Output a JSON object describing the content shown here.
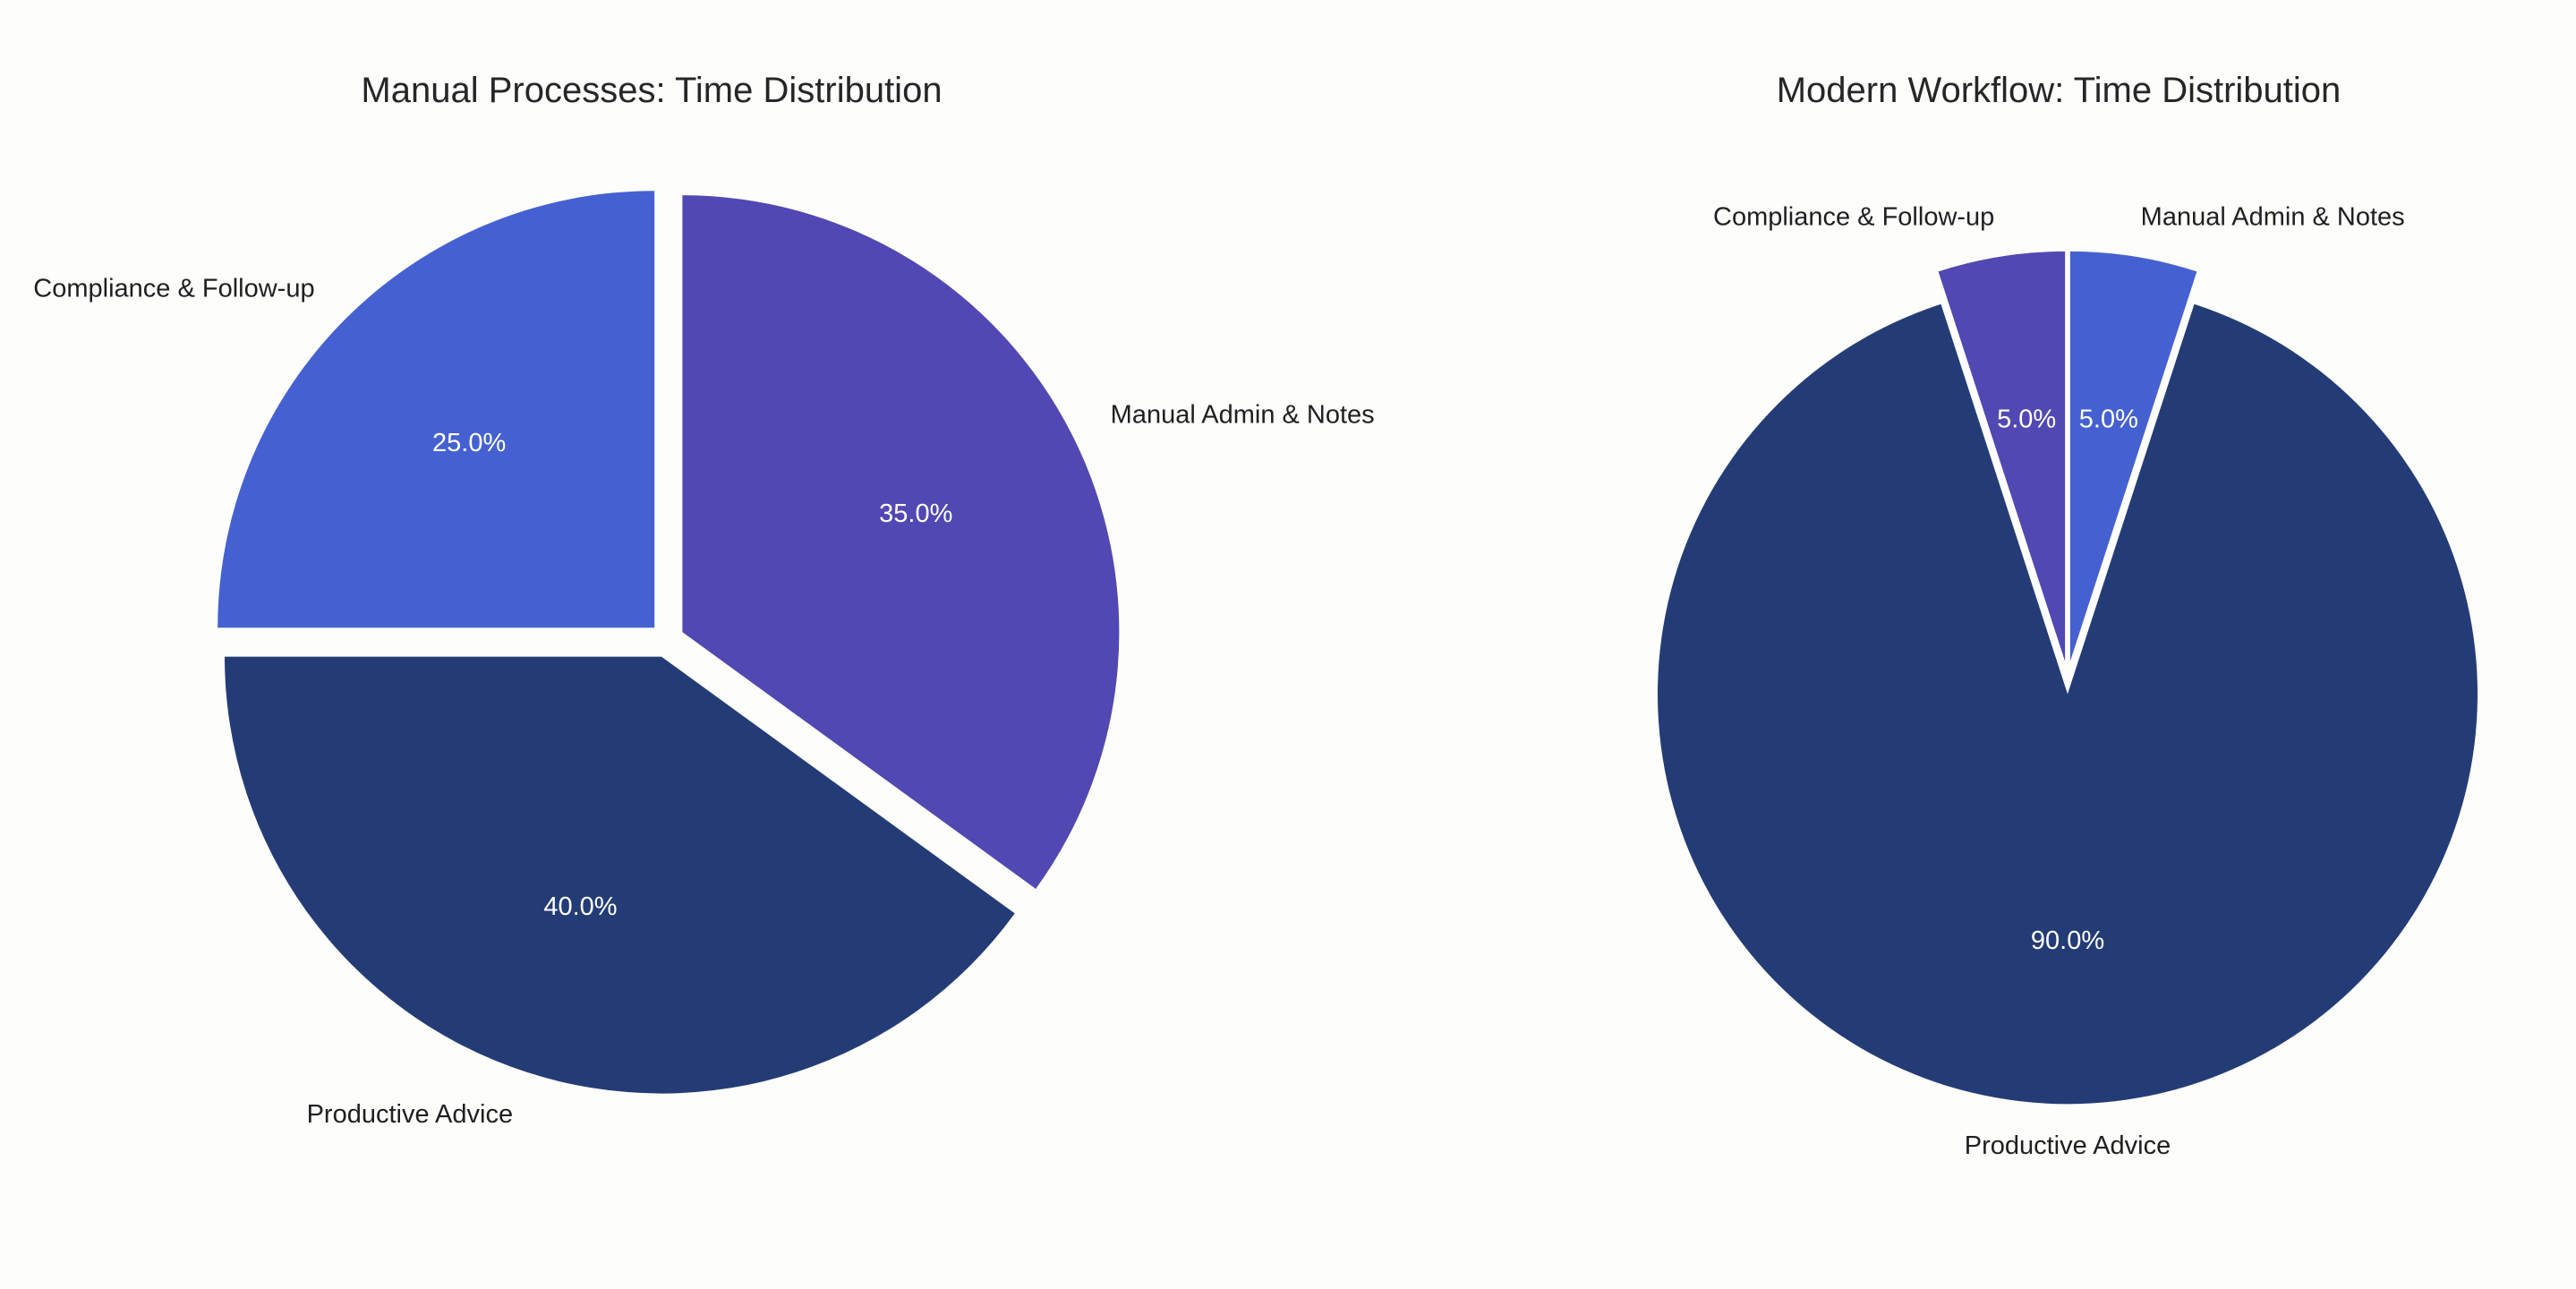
{
  "chart_data": [
    {
      "type": "pie",
      "title": "Manual Processes: Time Distribution",
      "start_angle_deg": 90,
      "direction": "clockwise",
      "explode": 0.04,
      "slices": [
        {
          "label": "Manual Admin & Notes",
          "value": 35.0,
          "pct_label": "35.0%",
          "color": "#5148b3"
        },
        {
          "label": "Productive Advice",
          "value": 40.0,
          "pct_label": "40.0%",
          "color": "#243c76"
        },
        {
          "label": "Compliance & Follow-up",
          "value": 25.0,
          "pct_label": "25.0%",
          "color": "#4561d1"
        }
      ]
    },
    {
      "type": "pie",
      "title": "Modern Workflow: Time Distribution",
      "start_angle_deg": 90,
      "direction": "clockwise",
      "explode": 0.04,
      "slices": [
        {
          "label": "Manual Admin & Notes",
          "value": 5.0,
          "pct_label": "5.0%",
          "color": "#4561d1"
        },
        {
          "label": "Productive Advice",
          "value": 90.0,
          "pct_label": "90.0%",
          "color": "#243c76"
        },
        {
          "label": "Compliance & Follow-up",
          "value": 5.0,
          "pct_label": "5.0%",
          "color": "#5148b3"
        }
      ]
    }
  ]
}
